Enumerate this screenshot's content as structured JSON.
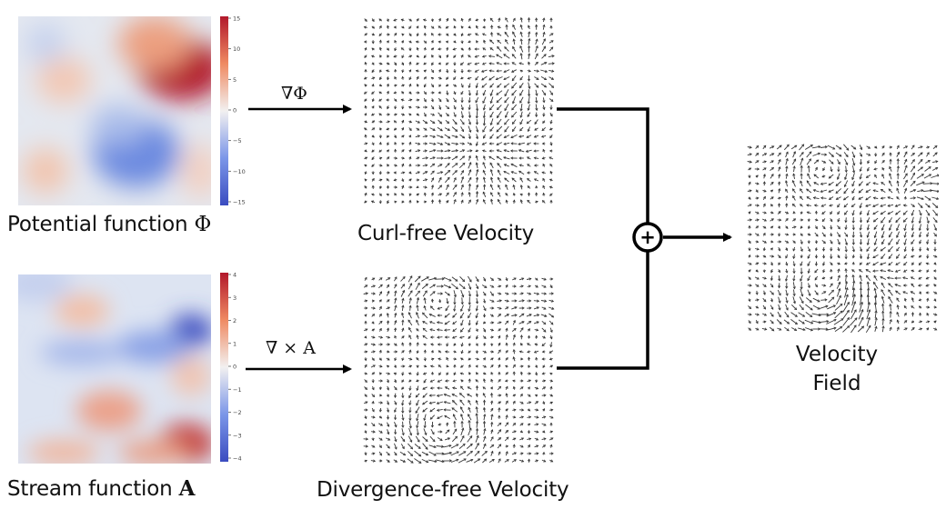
{
  "potential": {
    "caption_text": "Potential function ",
    "caption_symbol": "Φ",
    "colorbar_ticks": [
      "15",
      "10",
      "5",
      "0",
      "−5",
      "−10",
      "−15"
    ],
    "colors": {
      "high": "#b2182b",
      "mid": "#e8eaf0",
      "low": "#3b4cc0"
    }
  },
  "stream": {
    "caption_text": "Stream function ",
    "caption_symbol": "A",
    "colorbar_ticks": [
      "4",
      "3",
      "2",
      "1",
      "0",
      "−1",
      "−2",
      "−3",
      "−4"
    ]
  },
  "operators": {
    "gradient": "∇Φ",
    "curl": "∇ × A"
  },
  "fields": {
    "curl_free_label": "Curl-free Velocity",
    "divergence_free_label": "Divergence-free Velocity",
    "sum_symbol": "+",
    "output_label_line1": "Velocity",
    "output_label_line2": "Field"
  }
}
